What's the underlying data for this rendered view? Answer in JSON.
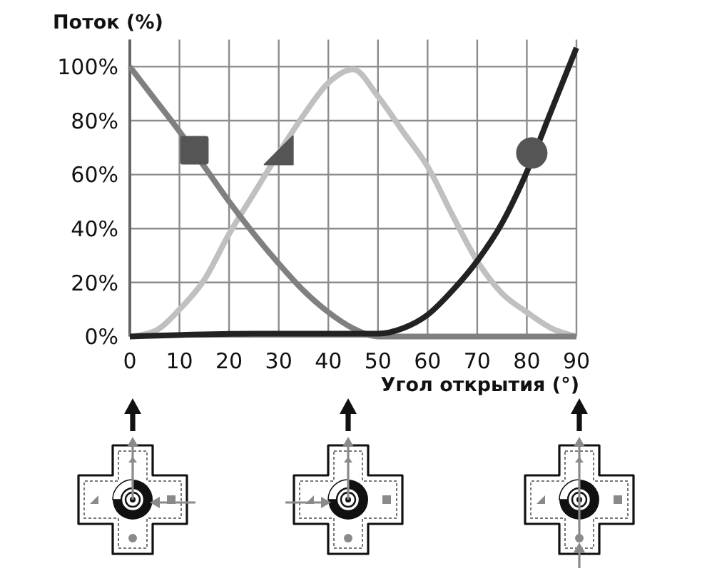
{
  "chart_data": {
    "type": "line",
    "xlabel": "Угол открытия (°)",
    "ylabel": "Поток (%)",
    "xlim": [
      0,
      90
    ],
    "xticks": [
      0,
      10,
      20,
      30,
      40,
      50,
      60,
      70,
      80,
      90
    ],
    "ylim": [
      0,
      110
    ],
    "yticks": [
      {
        "value": 0,
        "label": "0%"
      },
      {
        "value": 20,
        "label": "20%"
      },
      {
        "value": 40,
        "label": "40%"
      },
      {
        "value": 60,
        "label": "60%"
      },
      {
        "value": 80,
        "label": "80%"
      },
      {
        "value": 100,
        "label": "100%"
      }
    ],
    "grid": true,
    "series": [
      {
        "color": "#c0c0c0",
        "x": [
          0,
          5,
          10,
          15,
          20,
          25,
          30,
          35,
          40,
          45,
          50,
          55,
          60,
          65,
          70,
          75,
          80,
          85,
          90
        ],
        "values": [
          0,
          2,
          10,
          21,
          38,
          53,
          68,
          82,
          94,
          99,
          89,
          76,
          63,
          45,
          28,
          16,
          9,
          3,
          0
        ]
      },
      {
        "color": "#808080",
        "x": [
          0,
          5,
          10,
          15,
          20,
          25,
          30,
          35,
          40,
          45,
          50,
          90
        ],
        "values": [
          100,
          88,
          76,
          63,
          50,
          38,
          27,
          17,
          9,
          3,
          0,
          0
        ]
      },
      {
        "color": "#222222",
        "x": [
          0,
          25,
          50,
          55,
          60,
          65,
          70,
          75,
          80,
          85,
          90
        ],
        "values": [
          0,
          1,
          1,
          3,
          8,
          17,
          28,
          42,
          61,
          84,
          107
        ]
      },
      {
        "type": "scatter",
        "marker": "square",
        "color": "#555555",
        "x": [
          13
        ],
        "values": [
          69
        ]
      },
      {
        "type": "scatter",
        "marker": "triangle",
        "color": "#555555",
        "x": [
          30
        ],
        "values": [
          69
        ]
      },
      {
        "type": "scatter",
        "marker": "circle",
        "color": "#555555",
        "x": [
          81
        ],
        "values": [
          68
        ]
      }
    ]
  }
}
